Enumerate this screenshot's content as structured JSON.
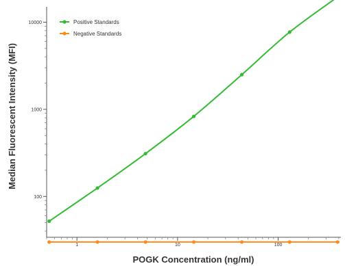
{
  "chart_data": {
    "type": "line",
    "xlabel": "POGK Concentration (ng/ml)",
    "ylabel": "Median Fluorescent Intensity  (MFI)",
    "x_scale": "log",
    "y_scale": "log",
    "xlim": [
      0.5,
      420
    ],
    "ylim": [
      34,
      15000
    ],
    "x_ticks": [
      1,
      10,
      100
    ],
    "x_tick_labels": [
      "1",
      "10",
      "100"
    ],
    "y_ticks": [
      100,
      1000,
      10000
    ],
    "y_tick_labels": [
      "100",
      "1000",
      "10000"
    ],
    "grid": false,
    "legend_position": "top-left",
    "series": [
      {
        "name": "Positive Standards",
        "color": "#33bb33",
        "marker": "circle",
        "x": [
          0.53,
          1.6,
          4.8,
          14.5,
          43.5,
          130,
          390
        ],
        "y": [
          52,
          125,
          310,
          830,
          2500,
          7700,
          19500
        ]
      },
      {
        "name": "Negative Standards",
        "color": "#ff8a1c",
        "marker": "circle",
        "x": [
          0.53,
          1.6,
          4.8,
          14.5,
          43.5,
          130,
          390
        ],
        "y": [
          30,
          30,
          30,
          30,
          30,
          30,
          30
        ]
      }
    ]
  }
}
